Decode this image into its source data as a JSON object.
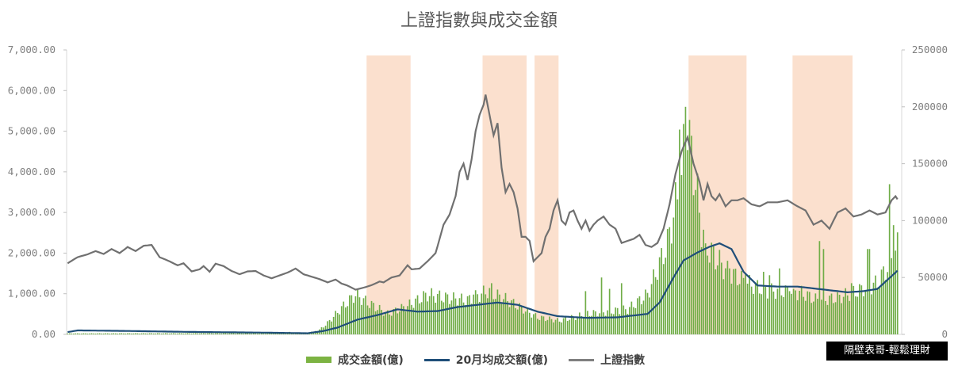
{
  "chart_data": {
    "type": "bar+line",
    "title": "上證指數與成交金額",
    "y_left": {
      "ticks": [
        "0.00",
        "1,000.00",
        "2,000.00",
        "3,000.00",
        "4,000.00",
        "5,000.00",
        "6,000.00",
        "7,000.00"
      ],
      "min": 0,
      "max": 7000
    },
    "y_right": {
      "ticks": [
        "0",
        "50000",
        "100000",
        "150000",
        "200000",
        "250000"
      ],
      "min": 0,
      "max": 250000
    },
    "x_count": 416,
    "highlight_ranges": [
      [
        150,
        172
      ],
      [
        208,
        230
      ],
      [
        234,
        246
      ],
      [
        311,
        340
      ],
      [
        363,
        393
      ]
    ],
    "colors": {
      "bars": "#70ad47",
      "ma20": "#1f4e79",
      "index": "#707070",
      "highlight": "#f8cbad"
    },
    "series": [
      {
        "name": "成交金額(億)",
        "kind": "bar",
        "axis": "right",
        "keypoints": [
          [
            0,
            800
          ],
          [
            40,
            900
          ],
          [
            80,
            1000
          ],
          [
            100,
            800
          ],
          [
            120,
            1500
          ],
          [
            126,
            4000
          ],
          [
            130,
            10000
          ],
          [
            138,
            25000
          ],
          [
            144,
            35000
          ],
          [
            150,
            28000
          ],
          [
            160,
            18000
          ],
          [
            170,
            25000
          ],
          [
            180,
            35000
          ],
          [
            190,
            32000
          ],
          [
            200,
            30000
          ],
          [
            210,
            38000
          ],
          [
            220,
            30000
          ],
          [
            235,
            15000
          ],
          [
            246,
            12000
          ],
          [
            260,
            18000
          ],
          [
            280,
            22000
          ],
          [
            290,
            35000
          ],
          [
            300,
            80000
          ],
          [
            306,
            130000
          ],
          [
            309,
            175000
          ],
          [
            312,
            160000
          ],
          [
            318,
            80000
          ],
          [
            330,
            55000
          ],
          [
            340,
            45000
          ],
          [
            350,
            38000
          ],
          [
            365,
            38000
          ],
          [
            375,
            30000
          ],
          [
            385,
            32000
          ],
          [
            395,
            38000
          ],
          [
            405,
            45000
          ],
          [
            412,
            65000
          ],
          [
            416,
            80000
          ]
        ],
        "spikes": [
          [
            111,
            2200
          ],
          [
            123,
            1800
          ],
          [
            203,
            35000
          ],
          [
            212,
            45000
          ],
          [
            216,
            35000
          ],
          [
            259,
            38000
          ],
          [
            267,
            50000
          ],
          [
            271,
            40000
          ],
          [
            277,
            45000
          ],
          [
            306,
            180000
          ],
          [
            307,
            140000
          ],
          [
            309,
            200000
          ],
          [
            310,
            162000
          ],
          [
            318,
            92000
          ],
          [
            319,
            80000
          ],
          [
            331,
            58000
          ],
          [
            339,
            53000
          ],
          [
            348,
            55000
          ],
          [
            351,
            52000
          ],
          [
            356,
            58000
          ],
          [
            361,
            38000
          ],
          [
            363,
            40000
          ],
          [
            365,
            30000
          ],
          [
            376,
            82000
          ],
          [
            378,
            75000
          ],
          [
            392,
            45000
          ],
          [
            400,
            75000
          ],
          [
            401,
            75000
          ],
          [
            411,
            132000
          ],
          [
            413,
            96000
          ]
        ]
      },
      {
        "name": "20月均成交額(億)",
        "kind": "line",
        "axis": "right",
        "keypoints": [
          [
            0,
            2000
          ],
          [
            5,
            3500
          ],
          [
            30,
            3000
          ],
          [
            60,
            2200
          ],
          [
            100,
            1500
          ],
          [
            120,
            1000
          ],
          [
            128,
            3000
          ],
          [
            135,
            6000
          ],
          [
            145,
            13000
          ],
          [
            155,
            17000
          ],
          [
            165,
            22000
          ],
          [
            175,
            20000
          ],
          [
            185,
            20500
          ],
          [
            195,
            24000
          ],
          [
            205,
            26000
          ],
          [
            215,
            28000
          ],
          [
            225,
            26000
          ],
          [
            235,
            20000
          ],
          [
            245,
            16000
          ],
          [
            260,
            14500
          ],
          [
            275,
            15000
          ],
          [
            290,
            18000
          ],
          [
            296,
            28000
          ],
          [
            303,
            50000
          ],
          [
            308,
            65000
          ],
          [
            315,
            72000
          ],
          [
            321,
            77000
          ],
          [
            326,
            80000
          ],
          [
            332,
            75000
          ],
          [
            338,
            55000
          ],
          [
            345,
            43000
          ],
          [
            355,
            42000
          ],
          [
            365,
            42000
          ],
          [
            375,
            40000
          ],
          [
            385,
            38000
          ],
          [
            390,
            37000
          ],
          [
            398,
            38000
          ],
          [
            405,
            40000
          ],
          [
            410,
            48000
          ],
          [
            415,
            56000
          ]
        ]
      },
      {
        "name": "上證指數",
        "kind": "line",
        "axis": "left",
        "keypoints": [
          [
            0,
            1750
          ],
          [
            5,
            1900
          ],
          [
            10,
            1970
          ],
          [
            14,
            2050
          ],
          [
            18,
            1980
          ],
          [
            22,
            2100
          ],
          [
            26,
            2000
          ],
          [
            30,
            2150
          ],
          [
            34,
            2050
          ],
          [
            38,
            2180
          ],
          [
            42,
            2200
          ],
          [
            46,
            1900
          ],
          [
            50,
            1820
          ],
          [
            55,
            1700
          ],
          [
            58,
            1750
          ],
          [
            62,
            1550
          ],
          [
            66,
            1600
          ],
          [
            68,
            1680
          ],
          [
            71,
            1540
          ],
          [
            74,
            1740
          ],
          [
            78,
            1680
          ],
          [
            82,
            1560
          ],
          [
            86,
            1480
          ],
          [
            90,
            1550
          ],
          [
            94,
            1560
          ],
          [
            98,
            1450
          ],
          [
            102,
            1380
          ],
          [
            106,
            1450
          ],
          [
            110,
            1520
          ],
          [
            114,
            1620
          ],
          [
            118,
            1480
          ],
          [
            122,
            1420
          ],
          [
            126,
            1360
          ],
          [
            130,
            1280
          ],
          [
            134,
            1350
          ],
          [
            137,
            1250
          ],
          [
            140,
            1200
          ],
          [
            144,
            1100
          ],
          [
            148,
            1150
          ],
          [
            152,
            1210
          ],
          [
            156,
            1300
          ],
          [
            158,
            1280
          ],
          [
            162,
            1400
          ],
          [
            166,
            1450
          ],
          [
            170,
            1700
          ],
          [
            172,
            1600
          ],
          [
            176,
            1620
          ],
          [
            180,
            1800
          ],
          [
            184,
            2000
          ],
          [
            188,
            2700
          ],
          [
            191,
            2950
          ],
          [
            194,
            3400
          ],
          [
            196,
            4000
          ],
          [
            198,
            4200
          ],
          [
            200,
            3800
          ],
          [
            202,
            4300
          ],
          [
            204,
            5000
          ],
          [
            206,
            5400
          ],
          [
            208,
            5650
          ],
          [
            209,
            5900
          ],
          [
            211,
            5400
          ],
          [
            213,
            4900
          ],
          [
            215,
            5200
          ],
          [
            217,
            4100
          ],
          [
            219,
            3500
          ],
          [
            221,
            3700
          ],
          [
            223,
            3500
          ],
          [
            225,
            3100
          ],
          [
            227,
            2400
          ],
          [
            229,
            2400
          ],
          [
            231,
            2300
          ],
          [
            233,
            1800
          ],
          [
            235,
            1900
          ],
          [
            237,
            2000
          ],
          [
            239,
            2400
          ],
          [
            241,
            2600
          ],
          [
            243,
            3050
          ],
          [
            245,
            3300
          ],
          [
            247,
            2800
          ],
          [
            249,
            2700
          ],
          [
            251,
            3000
          ],
          [
            253,
            3050
          ],
          [
            255,
            2800
          ],
          [
            257,
            2600
          ],
          [
            259,
            2800
          ],
          [
            261,
            2550
          ],
          [
            263,
            2700
          ],
          [
            265,
            2800
          ],
          [
            268,
            2900
          ],
          [
            271,
            2700
          ],
          [
            274,
            2600
          ],
          [
            277,
            2250
          ],
          [
            280,
            2300
          ],
          [
            283,
            2350
          ],
          [
            286,
            2450
          ],
          [
            289,
            2200
          ],
          [
            292,
            2150
          ],
          [
            295,
            2250
          ],
          [
            298,
            2600
          ],
          [
            301,
            3200
          ],
          [
            304,
            3950
          ],
          [
            307,
            4500
          ],
          [
            310,
            4850
          ],
          [
            313,
            4200
          ],
          [
            316,
            3750
          ],
          [
            318,
            3300
          ],
          [
            320,
            3700
          ],
          [
            322,
            3400
          ],
          [
            324,
            3300
          ],
          [
            326,
            3450
          ],
          [
            329,
            3150
          ],
          [
            332,
            3300
          ],
          [
            335,
            3300
          ],
          [
            338,
            3350
          ],
          [
            342,
            3200
          ],
          [
            346,
            3150
          ],
          [
            350,
            3250
          ],
          [
            355,
            3250
          ],
          [
            360,
            3300
          ],
          [
            365,
            3150
          ],
          [
            369,
            3050
          ],
          [
            373,
            2700
          ],
          [
            377,
            2800
          ],
          [
            381,
            2600
          ],
          [
            385,
            3000
          ],
          [
            389,
            3100
          ],
          [
            393,
            2900
          ],
          [
            397,
            2950
          ],
          [
            401,
            3050
          ],
          [
            405,
            2950
          ],
          [
            409,
            3000
          ],
          [
            412,
            3300
          ],
          [
            414,
            3400
          ],
          [
            416,
            3250
          ]
        ]
      }
    ]
  },
  "legend": {
    "bars_label": "成交金額(億)",
    "ma_label": "20月均成交額(億)",
    "index_label": "上證指數"
  },
  "watermark": "隔壁表哥-輕鬆理財"
}
